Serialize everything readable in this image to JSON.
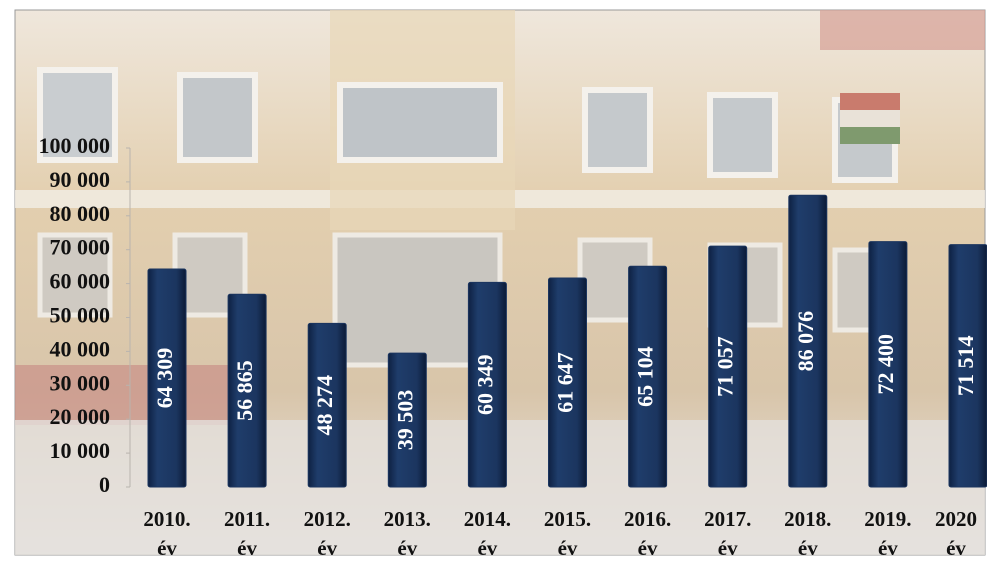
{
  "chart_data": {
    "type": "bar",
    "categories": [
      "2010. év",
      "2011. év",
      "2012. év",
      "2013. év",
      "2014. év",
      "2015. év",
      "2016. év",
      "2017. év",
      "2018. év",
      "2019. év",
      "2020 év"
    ],
    "values": [
      64309,
      56865,
      48274,
      39503,
      60349,
      61647,
      65104,
      71057,
      86076,
      72400,
      71514
    ],
    "value_labels": [
      "64 309",
      "56 865",
      "48 274",
      "39 503",
      "60 349",
      "61 647",
      "65 104",
      "71 057",
      "86 076",
      "72 400",
      "71 514"
    ],
    "color": "#1b355f",
    "ylim": [
      0,
      100000
    ],
    "yticks": [
      0,
      {
        "value": 10000,
        "label": "10 000"
      },
      {
        "value": 20000,
        "label": "20 000"
      },
      {
        "value": 30000,
        "label": "30 000"
      },
      {
        "value": 40000,
        "label": "40 000"
      },
      {
        "value": 50000,
        "label": "50 000"
      },
      {
        "value": 60000,
        "label": "60 000"
      },
      {
        "value": 70000,
        "label": "70 000"
      },
      {
        "value": 80000,
        "label": "80 000"
      },
      {
        "value": 90000,
        "label": "90 000"
      },
      {
        "value": 100000,
        "label": "100 000"
      }
    ],
    "grid": false
  }
}
